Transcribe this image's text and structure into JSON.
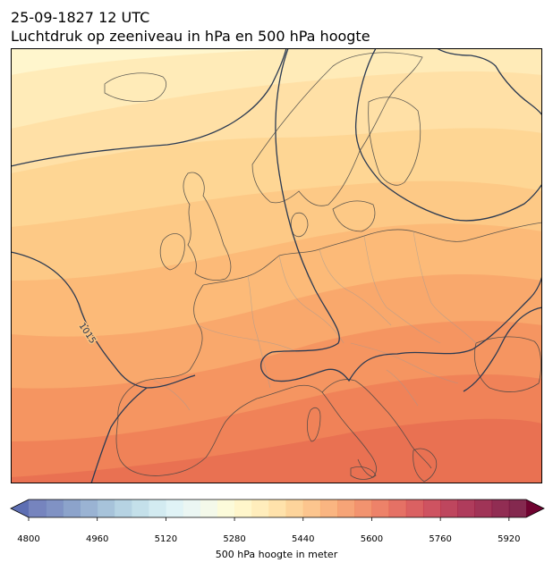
{
  "header": {
    "datetime": "25-09-1827 12 UTC",
    "subtitle": "Luchtdruk op zeeniveau in hPa en 500 hPa hoogte"
  },
  "map": {
    "isobar_label": "1015",
    "isobar_color": "#2b3a52",
    "coastline_color": "#444444",
    "border_color": "#999999"
  },
  "colorbar": {
    "label": "500 hPa hoogte in meter",
    "ticks": [
      "4800",
      "4960",
      "5120",
      "5280",
      "5440",
      "5600",
      "5760",
      "5920"
    ],
    "min": 4800,
    "max": 5960,
    "step": 40,
    "colors": [
      "#5e6fb3",
      "#6a7fba",
      "#7893c2",
      "#88a6cb",
      "#98b9d4",
      "#a9cbde",
      "#badbe6",
      "#cbe8ef",
      "#dbf1f4",
      "#e8f5f1",
      "#f2f8e6",
      "#fbfad3",
      "#fff5c2",
      "#ffeab0",
      "#ffdd9c",
      "#fdcd8a",
      "#fcbb7a",
      "#f9a86b",
      "#f5945f",
      "#f08056",
      "#ea6c4f",
      "#e1584a",
      "#d44547",
      "#c53545",
      "#b32642",
      "#a11a3f",
      "#8f103a",
      "#7e0835",
      "#6f0330"
    ]
  }
}
